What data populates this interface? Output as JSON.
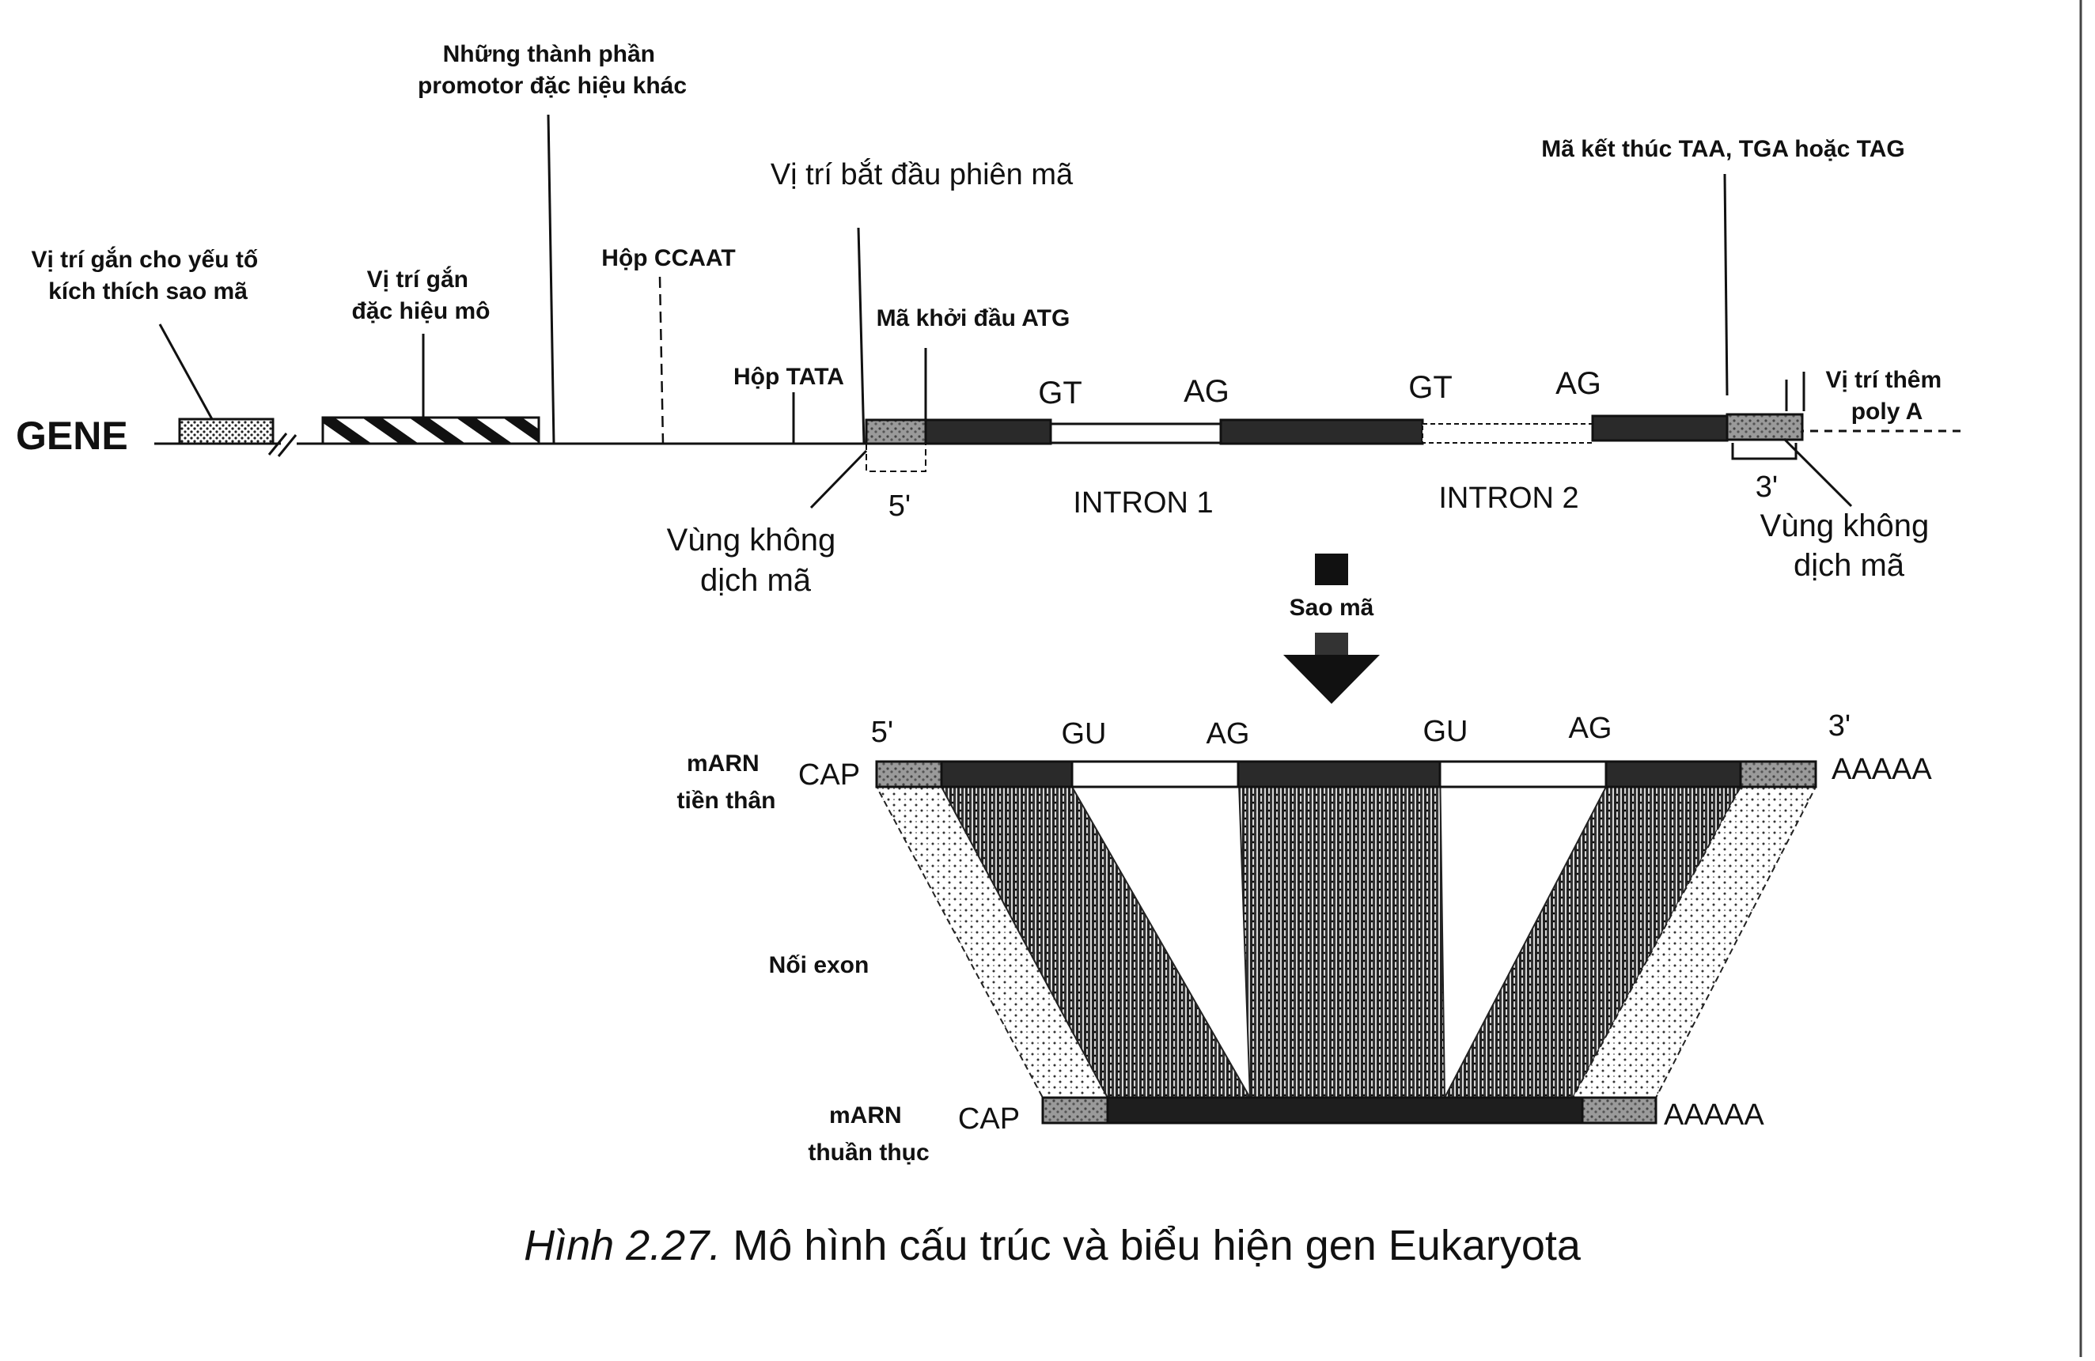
{
  "gene": {
    "label": "GENE",
    "stimulus_site": [
      "Vị trí gắn cho yếu tố",
      "kích thích sao mã"
    ],
    "tissue_site": [
      "Vị trí gắn",
      "đặc hiệu mô"
    ],
    "promoter_elements": [
      "Những thành phần",
      "promotor đặc hiệu khác"
    ],
    "ccaat_box": "Hộp CCAAT",
    "tata_box": "Hộp TATA",
    "transcription_start": "Vị trí bắt đầu phiên mã",
    "start_codon": "Mã khởi đầu ATG",
    "stop_codon": "Mã kết thúc TAA, TGA hoặc TAG",
    "polya_site": [
      "Vị trí thêm",
      "poly A"
    ],
    "gt1": "GT",
    "ag1": "AG",
    "gt2": "GT",
    "ag2": "AG",
    "intron1": "INTRON 1",
    "intron2": "INTRON 2",
    "five_prime": "5'",
    "three_prime": "3'",
    "utr_left": [
      "Vùng không",
      "dịch mã"
    ],
    "utr_right": [
      "Vùng không",
      "dịch mã"
    ]
  },
  "transcription": {
    "label": "Sao mã"
  },
  "pre_mrna": {
    "name": [
      "mARN",
      "tiền thân"
    ],
    "cap": "CAP",
    "five_prime": "5'",
    "three_prime": "3'",
    "gu1": "GU",
    "ag1": "AG",
    "gu2": "GU",
    "ag2": "AG",
    "polya": "AAAAA"
  },
  "splicing": {
    "label": "Nối exon"
  },
  "mature_mrna": {
    "name": [
      "mARN",
      "thuần thục"
    ],
    "cap": "CAP",
    "polya": "AAAAA"
  },
  "caption": {
    "figure_no": "Hình 2.27.",
    "title": "Mô hình cấu trúc và biểu hiện gen Eukaryota"
  },
  "colors": {
    "exon": "#2a2a2a",
    "intron": "#ffffff",
    "line": "#111111"
  }
}
